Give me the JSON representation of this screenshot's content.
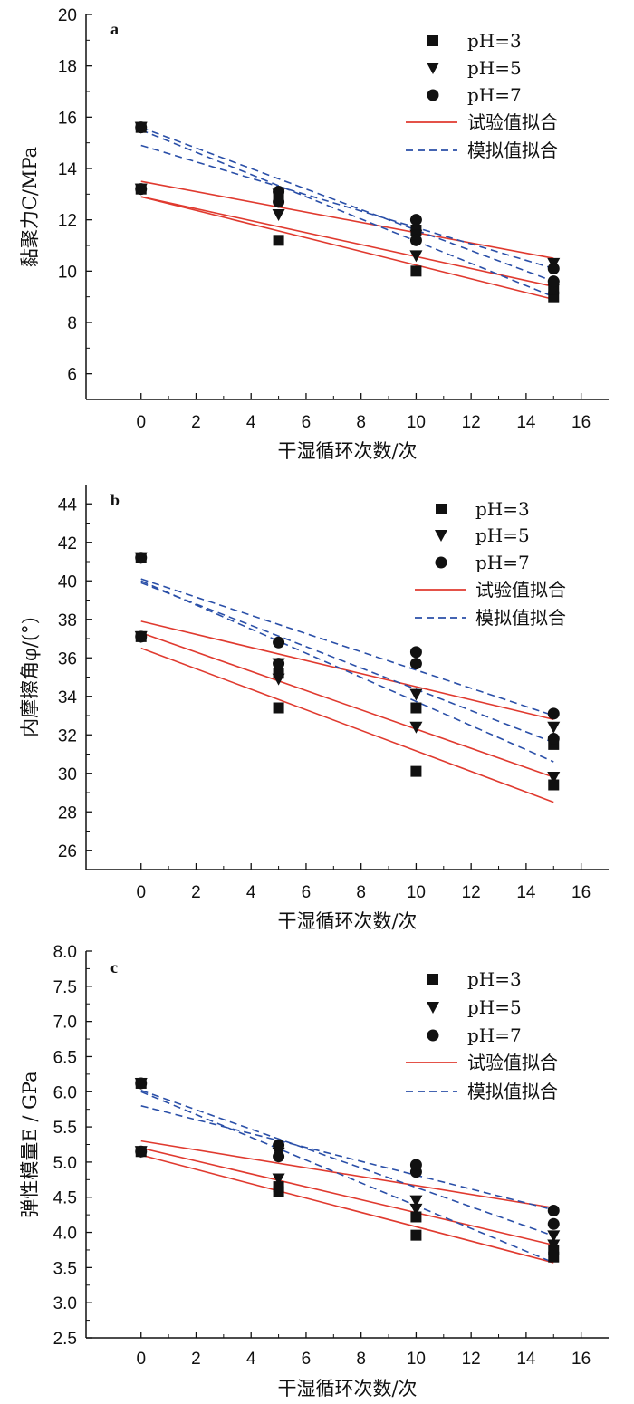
{
  "figure": {
    "legend_labels": [
      "pH=3",
      "pH=5",
      "pH=7",
      "试验值拟合",
      "模拟值拟合"
    ]
  },
  "chart_data": [
    {
      "panel": "a",
      "type": "scatter",
      "xlabel": "干湿循环次数/次",
      "ylabel": "黏聚力C/MPa",
      "xlim": [
        -2,
        17
      ],
      "ylim": [
        5,
        20
      ],
      "xticks": [
        0,
        2,
        4,
        6,
        8,
        10,
        12,
        14,
        16
      ],
      "yticks": [
        6,
        8,
        10,
        12,
        14,
        16,
        18,
        20
      ],
      "grid": false,
      "legend_position": "top-right",
      "series": [
        {
          "name": "pH=3",
          "marker": "square",
          "x": [
            0,
            0,
            5,
            5,
            10,
            10,
            15,
            15
          ],
          "y": [
            13.2,
            15.6,
            11.2,
            13.0,
            10.0,
            11.6,
            9.0,
            9.3
          ]
        },
        {
          "name": "pH=5",
          "marker": "triangle-down",
          "x": [
            0,
            0,
            5,
            5,
            10,
            10,
            15,
            15
          ],
          "y": [
            13.2,
            15.6,
            12.2,
            13.0,
            10.6,
            11.4,
            9.3,
            10.3
          ]
        },
        {
          "name": "pH=7",
          "marker": "circle",
          "x": [
            0,
            0,
            5,
            5,
            10,
            10,
            15,
            15
          ],
          "y": [
            13.2,
            15.6,
            12.7,
            13.1,
            11.2,
            12.0,
            9.6,
            10.1
          ]
        }
      ],
      "fit_lines": [
        {
          "name": "试验值拟合",
          "style": "solid",
          "x": [
            0,
            15
          ],
          "y": [
            12.9,
            8.9
          ]
        },
        {
          "name": "试验值拟合",
          "style": "solid",
          "x": [
            0,
            15
          ],
          "y": [
            12.9,
            9.4
          ]
        },
        {
          "name": "试验值拟合",
          "style": "solid",
          "x": [
            0,
            15
          ],
          "y": [
            13.5,
            10.5
          ]
        },
        {
          "name": "模拟值拟合",
          "style": "dashed",
          "x": [
            0,
            15
          ],
          "y": [
            15.5,
            9.0
          ]
        },
        {
          "name": "模拟值拟合",
          "style": "dashed",
          "x": [
            0,
            15
          ],
          "y": [
            15.6,
            9.6
          ]
        },
        {
          "name": "模拟值拟合",
          "style": "dashed",
          "x": [
            0,
            15
          ],
          "y": [
            14.9,
            10.1
          ]
        }
      ]
    },
    {
      "panel": "b",
      "type": "scatter",
      "xlabel": "干湿循环次数/次",
      "ylabel": "内摩擦角φ/(°)",
      "xlim": [
        -2,
        17
      ],
      "ylim": [
        25,
        45
      ],
      "xticks": [
        0,
        2,
        4,
        6,
        8,
        10,
        12,
        14,
        16
      ],
      "yticks": [
        26,
        28,
        30,
        32,
        34,
        36,
        38,
        40,
        42,
        44
      ],
      "grid": false,
      "legend_position": "top-right",
      "series": [
        {
          "name": "pH=3",
          "marker": "square",
          "x": [
            0,
            0,
            5,
            5,
            10,
            10,
            15,
            15
          ],
          "y": [
            37.1,
            41.2,
            33.4,
            35.2,
            30.1,
            33.4,
            29.4,
            31.5
          ]
        },
        {
          "name": "pH=5",
          "marker": "triangle-down",
          "x": [
            0,
            0,
            5,
            5,
            10,
            10,
            15,
            15
          ],
          "y": [
            37.1,
            41.2,
            34.9,
            35.7,
            32.4,
            34.1,
            29.8,
            32.4
          ]
        },
        {
          "name": "pH=7",
          "marker": "circle",
          "x": [
            0,
            0,
            5,
            5,
            10,
            10,
            15,
            15
          ],
          "y": [
            37.1,
            41.2,
            35.7,
            36.8,
            35.7,
            36.3,
            31.8,
            33.1
          ]
        }
      ],
      "fit_lines": [
        {
          "name": "试验值拟合",
          "style": "solid",
          "x": [
            0,
            15
          ],
          "y": [
            36.5,
            28.5
          ]
        },
        {
          "name": "试验值拟合",
          "style": "solid",
          "x": [
            0,
            15
          ],
          "y": [
            37.3,
            29.8
          ]
        },
        {
          "name": "试验值拟合",
          "style": "solid",
          "x": [
            0,
            15
          ],
          "y": [
            37.9,
            32.8
          ]
        },
        {
          "name": "模拟值拟合",
          "style": "dashed",
          "x": [
            0,
            15
          ],
          "y": [
            40.0,
            30.6
          ]
        },
        {
          "name": "模拟值拟合",
          "style": "dashed",
          "x": [
            0,
            15
          ],
          "y": [
            39.9,
            31.6
          ]
        },
        {
          "name": "模拟值拟合",
          "style": "dashed",
          "x": [
            0,
            15
          ],
          "y": [
            40.1,
            33.0
          ]
        }
      ]
    },
    {
      "panel": "c",
      "type": "scatter",
      "xlabel": "干湿循环次数/次",
      "ylabel": "弹性模量E / GPa",
      "xlim": [
        -2,
        17
      ],
      "ylim": [
        2.5,
        8.0
      ],
      "xticks": [
        0,
        2,
        4,
        6,
        8,
        10,
        12,
        14,
        16
      ],
      "xtick_labels": [
        "0",
        "2",
        "4",
        "6",
        "8",
        "10",
        "12",
        "14",
        "16"
      ],
      "yticks": [
        2.5,
        3.0,
        3.5,
        4.0,
        4.5,
        5.0,
        5.5,
        6.0,
        6.5,
        7.0,
        7.5,
        8.0
      ],
      "ytick_labels": [
        "2.5",
        "3.0",
        "3.5",
        "4.0",
        "4.5",
        "5.0",
        "5.5",
        "6.0",
        "6.5",
        "7.0",
        "7.5",
        "8.0"
      ],
      "grid": false,
      "legend_position": "top-right",
      "series": [
        {
          "name": "pH=3",
          "marker": "square",
          "x": [
            0,
            0,
            5,
            5,
            10,
            10,
            15,
            15
          ],
          "y": [
            5.15,
            6.12,
            4.58,
            4.65,
            3.96,
            4.22,
            3.65,
            3.75
          ]
        },
        {
          "name": "pH=5",
          "marker": "triangle-down",
          "x": [
            0,
            0,
            5,
            5,
            10,
            10,
            15,
            15
          ],
          "y": [
            5.15,
            6.12,
            4.76,
            5.13,
            4.45,
            4.33,
            3.95,
            3.82
          ]
        },
        {
          "name": "pH=7",
          "marker": "circle",
          "x": [
            0,
            0,
            5,
            5,
            10,
            10,
            15,
            15
          ],
          "y": [
            5.15,
            6.12,
            5.08,
            5.24,
            4.86,
            4.96,
            4.12,
            4.31
          ]
        }
      ],
      "fit_lines": [
        {
          "name": "试验值拟合",
          "style": "solid",
          "x": [
            0,
            15
          ],
          "y": [
            5.1,
            3.57
          ]
        },
        {
          "name": "试验值拟合",
          "style": "solid",
          "x": [
            0,
            15
          ],
          "y": [
            5.2,
            3.82
          ]
        },
        {
          "name": "试验值拟合",
          "style": "solid",
          "x": [
            0,
            15
          ],
          "y": [
            5.3,
            4.35
          ]
        },
        {
          "name": "模拟值拟合",
          "style": "dashed",
          "x": [
            0,
            15
          ],
          "y": [
            6.0,
            3.57
          ]
        },
        {
          "name": "模拟值拟合",
          "style": "dashed",
          "x": [
            0,
            15
          ],
          "y": [
            6.02,
            3.95
          ]
        },
        {
          "name": "模拟值拟合",
          "style": "dashed",
          "x": [
            0,
            15
          ],
          "y": [
            5.8,
            4.32
          ]
        }
      ]
    }
  ],
  "colors": {
    "marker": "#111111",
    "fit_solid": "#e03a2f",
    "fit_dashed": "#2a4fa8",
    "axis": "#111111"
  }
}
